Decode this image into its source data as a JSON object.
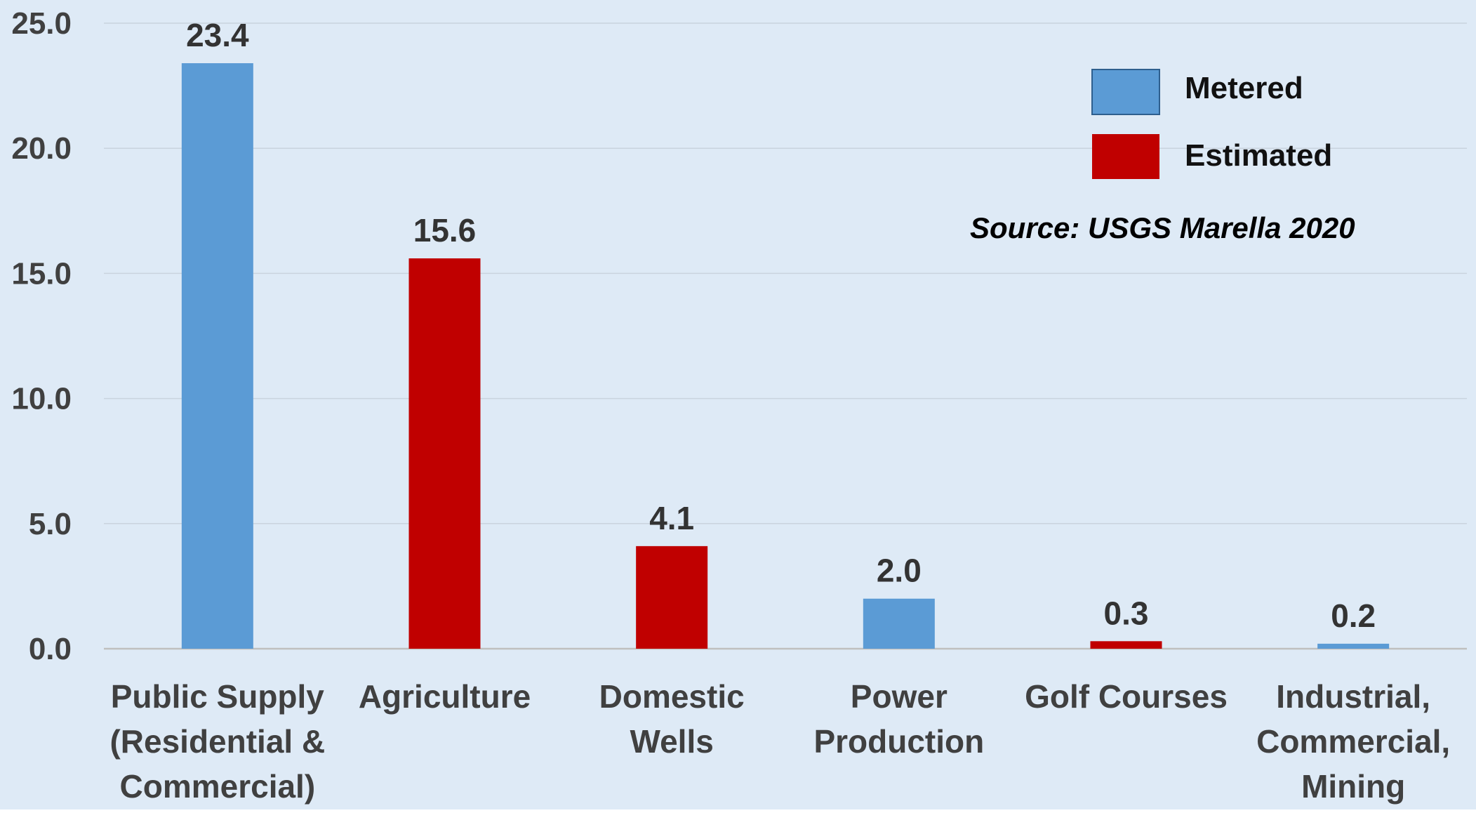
{
  "chart_data": {
    "type": "bar",
    "categories": [
      [
        "Public Supply",
        "(Residential &",
        "Commercial)"
      ],
      [
        "Agriculture"
      ],
      [
        "Domestic",
        "Wells"
      ],
      [
        "Power",
        "Production"
      ],
      [
        "Golf Courses"
      ],
      [
        "Industrial,",
        "Commercial,",
        "Mining"
      ]
    ],
    "values": [
      23.4,
      15.6,
      4.1,
      2.0,
      0.3,
      0.2
    ],
    "value_labels": [
      "23.4",
      "15.6",
      "4.1",
      "2.0",
      "0.3",
      "0.2"
    ],
    "bar_series": [
      "Metered",
      "Estimated",
      "Estimated",
      "Metered",
      "Estimated",
      "Metered"
    ],
    "series": [
      {
        "name": "Metered",
        "color": "#5B9BD5"
      },
      {
        "name": "Estimated",
        "color": "#C00000"
      }
    ],
    "yticks": [
      "0.0",
      "5.0",
      "10.0",
      "15.0",
      "20.0",
      "25.0"
    ],
    "ylim": [
      0,
      25
    ],
    "grid": true,
    "legend_position": "top-right",
    "annotation": "Source: USGS Marella 2020",
    "background_color": "#DEEAF6",
    "grid_color": "#C9D3DE",
    "axis_color": "#BFBFBF"
  }
}
